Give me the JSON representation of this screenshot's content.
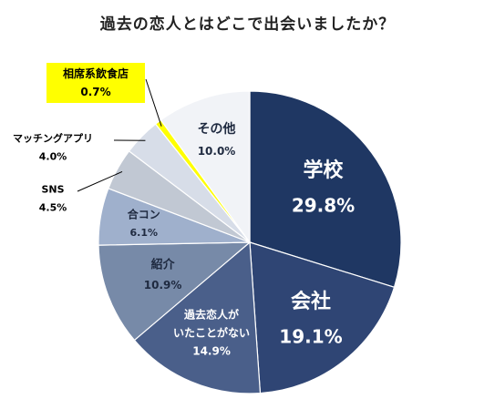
{
  "chart_data": {
    "type": "pie",
    "title": "過去の恋人とはどこで出会いましたか？",
    "slices": [
      {
        "label": "学校",
        "value": 29.8,
        "display": "29.8%",
        "color": "#1f3763"
      },
      {
        "label": "会社",
        "value": 19.1,
        "display": "19.1%",
        "color": "#2f4574"
      },
      {
        "label": "過去恋人が\nいたことがない",
        "value": 14.9,
        "display": "14.9%",
        "color": "#4a5f8a"
      },
      {
        "label": "紹介",
        "value": 10.9,
        "display": "10.9%",
        "color": "#778aa8"
      },
      {
        "label": "合コン",
        "value": 6.1,
        "display": "6.1%",
        "color": "#9fb0cc"
      },
      {
        "label": "SNS",
        "value": 4.5,
        "display": "4.5%",
        "color": "#c1c8d3"
      },
      {
        "label": "マッチングアプリ",
        "value": 4.0,
        "display": "4.0%",
        "color": "#d7dde8"
      },
      {
        "label": "相席系飲食店",
        "value": 0.7,
        "display": "0.7%",
        "color": "#ffff00"
      },
      {
        "label": "その他",
        "value": 10.0,
        "display": "10.0%",
        "color": "#f1f3f7"
      }
    ]
  }
}
